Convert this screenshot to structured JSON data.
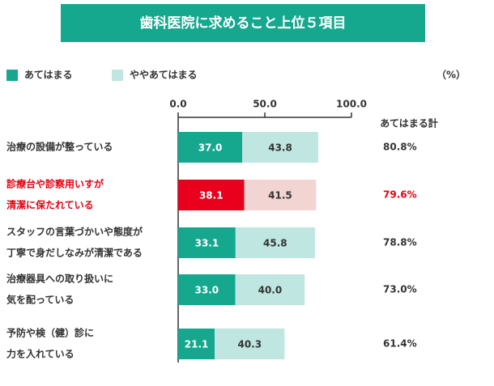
{
  "chart_data": {
    "type": "stacked-bar-horizontal",
    "title": "歯科医院に求めること上位５項目",
    "unit": "（%）",
    "categories": [
      [
        "治療の設備が整っている"
      ],
      [
        "診療台や診察用いすが",
        "清潔に保たれている"
      ],
      [
        "スタッフの言葉づかいや態度が",
        "丁寧で身だしなみが清潔である"
      ],
      [
        "治療器具への取り扱いに",
        "気を配っている"
      ],
      [
        "予防や検（健）診に",
        "力を入れている"
      ]
    ],
    "category_colors": [
      "#333333",
      "#e60012",
      "#333333",
      "#333333",
      "#333333"
    ],
    "series": [
      {
        "name": "あてはまる",
        "color": "#16a88f",
        "point_colors": [
          "#16a88f",
          "#e8001c",
          "#16a88f",
          "#16a88f",
          "#16a88f"
        ],
        "values": [
          37.0,
          38.1,
          33.1,
          33.0,
          21.1
        ],
        "value_labels": [
          "37.0",
          "38.1",
          "33.1",
          "33.0",
          "21.1"
        ]
      },
      {
        "name": "ややあてはまる",
        "color": "#bfe6e0",
        "point_colors": [
          "#bfe6e0",
          "#f2d4d3",
          "#bfe6e0",
          "#bfe6e0",
          "#bfe6e0"
        ],
        "values": [
          43.8,
          41.5,
          45.8,
          40.0,
          40.3
        ],
        "value_labels": [
          "43.8",
          "41.5",
          "45.8",
          "40.0",
          "40.3"
        ]
      }
    ],
    "totals": {
      "title": "あてはまる計",
      "values": [
        80.8,
        79.6,
        78.8,
        73.0,
        61.4
      ],
      "value_labels": [
        "80.8%",
        "79.6%",
        "78.8%",
        "73.0%",
        "61.4%"
      ]
    },
    "xlim": [
      0,
      100
    ],
    "xticks": [
      {
        "value": 0,
        "label": "0.0"
      },
      {
        "value": 50,
        "label": "50.0"
      },
      {
        "value": 100,
        "label": "100.0"
      }
    ]
  }
}
